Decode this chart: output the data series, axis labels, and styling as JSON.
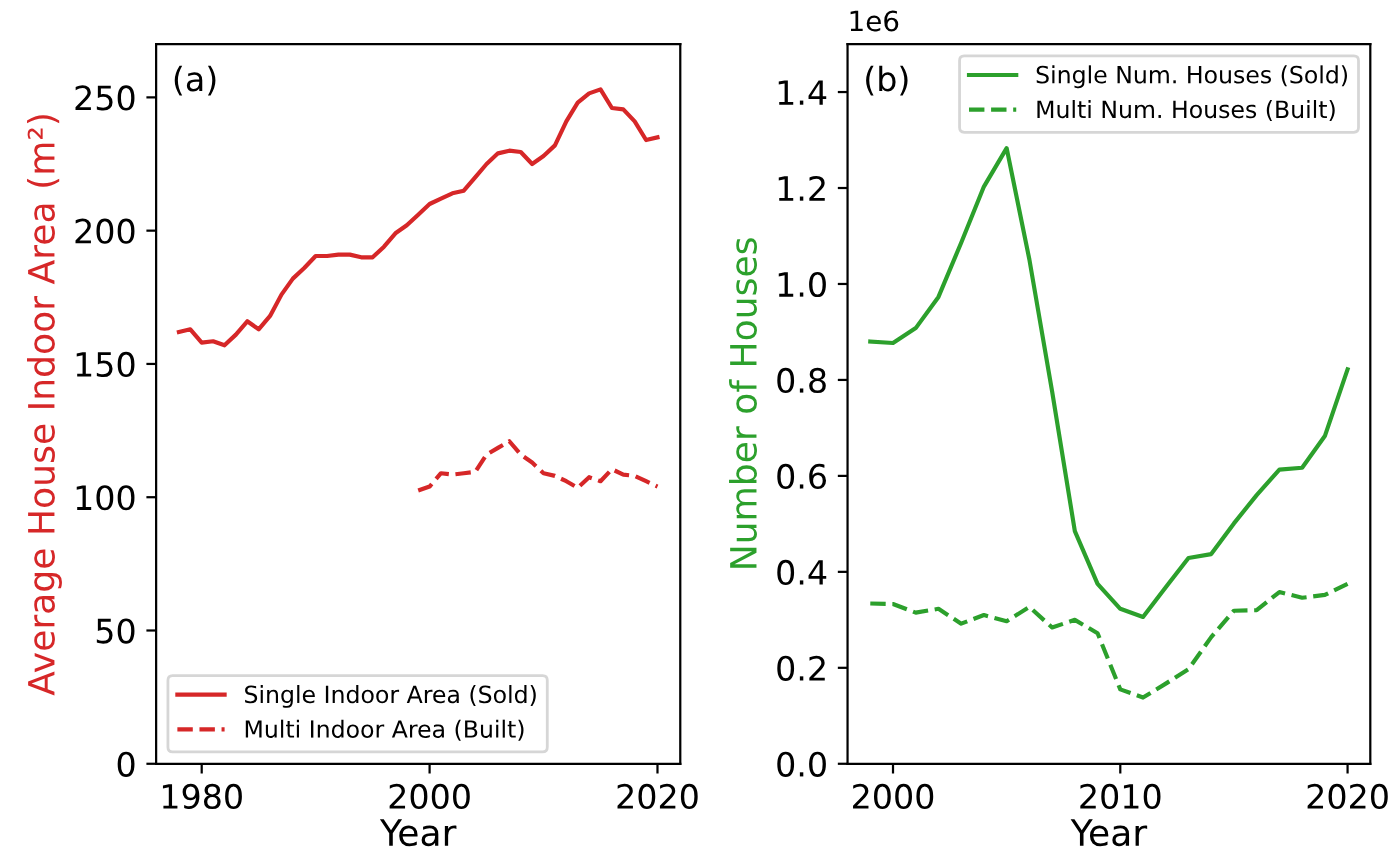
{
  "chart_data": [
    {
      "type": "line",
      "xlabel": "Year",
      "ylabel": "Average House Indoor Area (m²)",
      "annotations": [
        "(a)"
      ],
      "xlim": [
        1976,
        2022
      ],
      "ylim": [
        0,
        270
      ],
      "xticks": [
        1980,
        2000,
        2020
      ],
      "yticks": [
        0,
        50,
        100,
        150,
        200,
        250
      ],
      "grid": false,
      "legend": "bottom left",
      "series": [
        {
          "name": "Single Indoor Area (Sold)",
          "color": "#d62728",
          "line_style": "solid",
          "x": [
            1978,
            1979,
            1980,
            1981,
            1982,
            1983,
            1984,
            1985,
            1986,
            1987,
            1988,
            1989,
            1990,
            1991,
            1992,
            1993,
            1994,
            1995,
            1996,
            1997,
            1998,
            1999,
            2000,
            2001,
            2002,
            2003,
            2004,
            2005,
            2006,
            2007,
            2008,
            2009,
            2010,
            2011,
            2012,
            2013,
            2014,
            2015,
            2016,
            2017,
            2018,
            2019,
            2020
          ],
          "values": [
            162,
            163,
            158,
            158.5,
            157,
            161,
            166,
            163,
            168,
            176,
            182,
            186,
            190.5,
            190.5,
            191,
            191,
            190,
            190,
            194,
            199,
            202,
            206,
            210,
            212,
            214,
            215,
            220,
            225,
            229,
            230,
            229.5,
            225,
            228,
            232,
            241,
            248,
            251.5,
            253,
            246,
            245.5,
            241,
            234,
            235
          ]
        },
        {
          "name": "Multi Indoor Area (Built)",
          "color": "#d62728",
          "line_style": "dashed",
          "x": [
            1999,
            2000,
            2001,
            2002,
            2003,
            2004,
            2005,
            2006,
            2007,
            2008,
            2009,
            2010,
            2011,
            2012,
            2013,
            2014,
            2015,
            2016,
            2017,
            2018,
            2019,
            2020
          ],
          "values": [
            102.5,
            104,
            109,
            108.5,
            109,
            109.5,
            116,
            118.5,
            121,
            116,
            113,
            109,
            108,
            106,
            103.5,
            107.5,
            106,
            110.5,
            108.5,
            108,
            106,
            104
          ]
        }
      ]
    },
    {
      "type": "line",
      "xlabel": "Year",
      "ylabel": "Number of Houses",
      "annotations": [
        "(b)",
        "1e6"
      ],
      "xlim": [
        1998,
        2021
      ],
      "ylim": [
        0,
        1.5
      ],
      "xticks": [
        2000,
        2010,
        2020
      ],
      "yticks": [
        {
          "value": 0,
          "label": "0.0"
        },
        {
          "value": 0.2,
          "label": "0.2"
        },
        {
          "value": 0.4,
          "label": "0.4"
        },
        {
          "value": 0.6,
          "label": "0.6"
        },
        {
          "value": 0.8,
          "label": "0.8"
        },
        {
          "value": 1.0,
          "label": "1.0"
        },
        {
          "value": 1.2,
          "label": "1.2"
        },
        {
          "value": 1.4,
          "label": "1.4"
        }
      ],
      "grid": false,
      "legend": "top right",
      "series": [
        {
          "name": "Single Num. Houses (Sold)",
          "color": "#2ca02c",
          "line_style": "solid",
          "x": [
            1999,
            2000,
            2001,
            2002,
            2003,
            2004,
            2005,
            2006,
            2007,
            2008,
            2009,
            2010,
            2011,
            2012,
            2013,
            2014,
            2015,
            2016,
            2017,
            2018,
            2019,
            2020
          ],
          "values": [
            0.88,
            0.877,
            0.908,
            0.973,
            1.086,
            1.203,
            1.283,
            1.051,
            0.776,
            0.485,
            0.375,
            0.323,
            0.306,
            0.368,
            0.429,
            0.437,
            0.501,
            0.56,
            0.613,
            0.617,
            0.683,
            0.822
          ]
        },
        {
          "name": "Multi Num. Houses (Built)",
          "color": "#2ca02c",
          "line_style": "dashed",
          "x": [
            1999,
            2000,
            2001,
            2002,
            2003,
            2004,
            2005,
            2006,
            2007,
            2008,
            2009,
            2010,
            2011,
            2012,
            2013,
            2014,
            2015,
            2016,
            2017,
            2018,
            2019,
            2020
          ],
          "values": [
            0.334,
            0.333,
            0.315,
            0.323,
            0.292,
            0.31,
            0.297,
            0.327,
            0.284,
            0.3,
            0.272,
            0.155,
            0.138,
            0.167,
            0.197,
            0.264,
            0.319,
            0.32,
            0.358,
            0.346,
            0.352,
            0.375
          ]
        }
      ]
    }
  ]
}
